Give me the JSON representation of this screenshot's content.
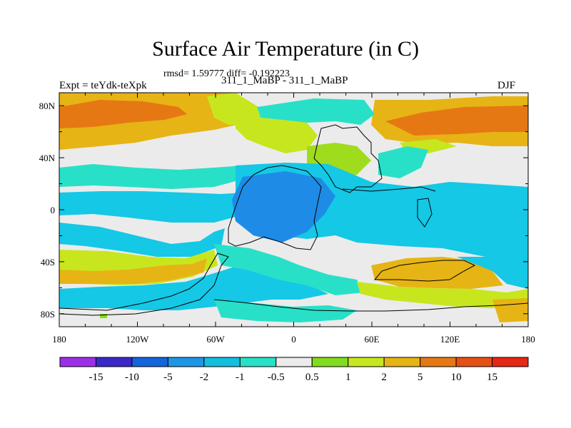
{
  "chart_data": {
    "type": "heatmap",
    "title": "Surface Air Temperature (in C)",
    "stats_line": "rmsd= 1.59777 diff= -0.192223",
    "experiment_title": "311_1_MaBP - 311_1_MaBP",
    "left_label": "Expt = teYdk-teXpk",
    "right_label": "DJF",
    "x_ticks": [
      "180",
      "120W",
      "60W",
      "0",
      "60E",
      "120E",
      "180"
    ],
    "y_ticks": [
      "80N",
      "40N",
      "0",
      "40S",
      "80S"
    ],
    "xlim": [
      -180,
      180
    ],
    "ylim": [
      -90,
      90
    ],
    "colorbar": {
      "labels": [
        "-15",
        "-10",
        "-5",
        "-2",
        "-1",
        "-0.5",
        "0.5",
        "1",
        "2",
        "5",
        "10",
        "15"
      ],
      "colors": [
        "#9b2fe8",
        "#3c28c8",
        "#1464dc",
        "#1e96e6",
        "#14bede",
        "#28e0c8",
        "#ebebeb",
        "#82dc1e",
        "#c8e61e",
        "#e6b414",
        "#e67814",
        "#e65014",
        "#e62814"
      ]
    }
  },
  "map": {
    "palette": {
      "neutral": "#ebebeb",
      "cyan": "#14c8e6",
      "blue": "#1e8ce6",
      "teal": "#28e0c8",
      "lgreen": "#a0dc1e",
      "yg": "#c8e61e",
      "orange": "#e6b414",
      "dorange": "#e67814",
      "green": "#82dc1e"
    }
  }
}
